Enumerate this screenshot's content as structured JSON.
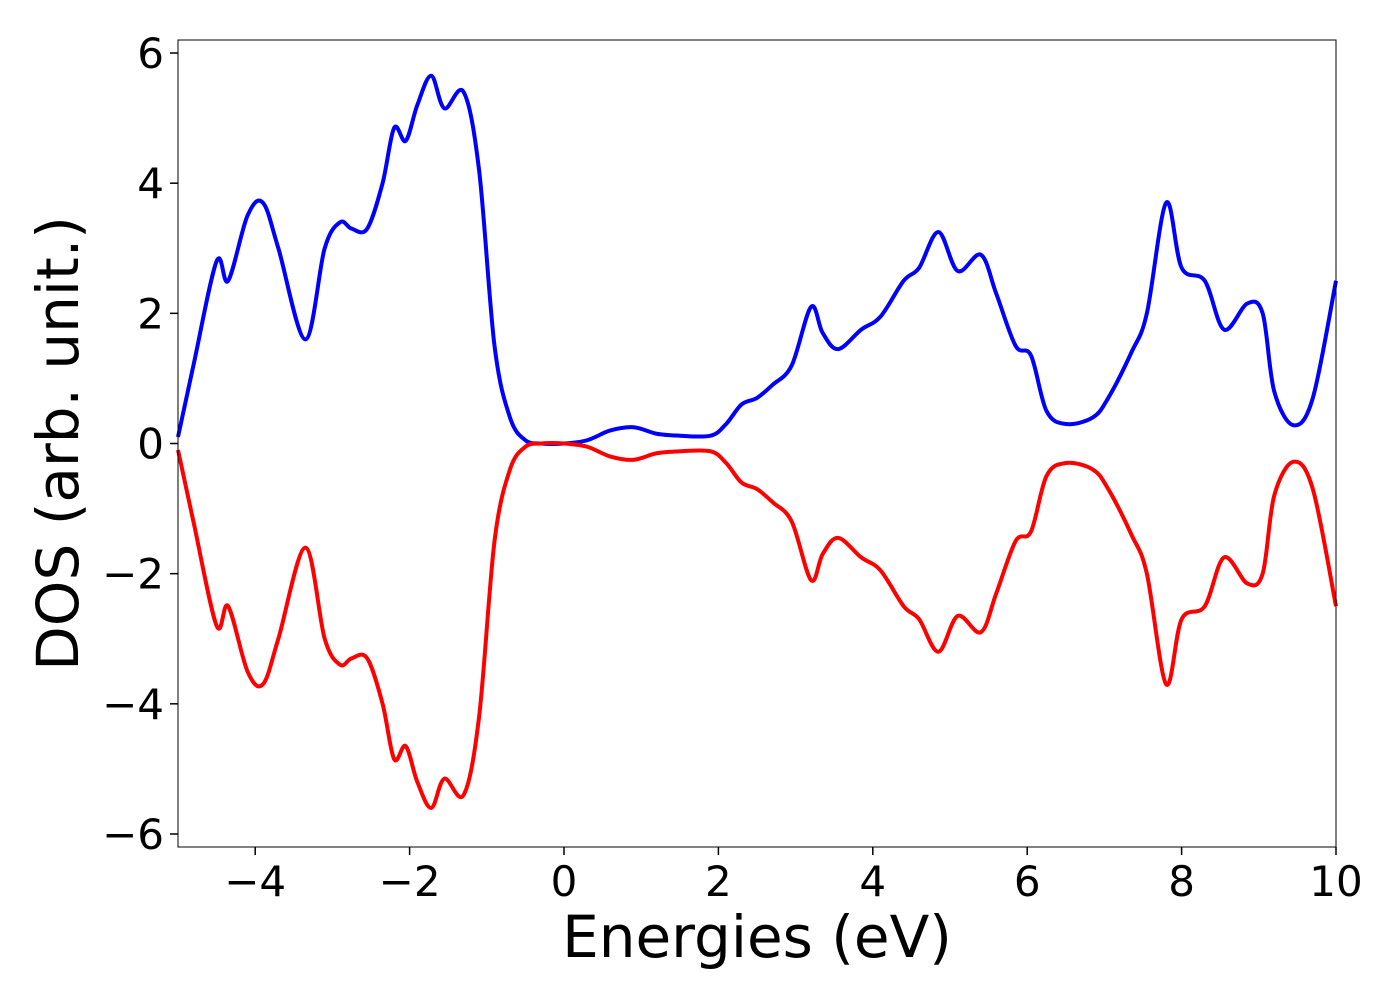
{
  "chart_data": {
    "type": "line",
    "xlabel": "Energies (eV)",
    "ylabel": "DOS (arb. unit.)",
    "xlim": [
      -5,
      10
    ],
    "ylim": [
      -6.2,
      6.2
    ],
    "xticks": [
      -4,
      -2,
      0,
      2,
      4,
      6,
      8,
      10
    ],
    "xtick_labels": [
      "−4",
      "−2",
      "0",
      "2",
      "4",
      "6",
      "8",
      "10"
    ],
    "yticks": [
      -6,
      -4,
      -2,
      0,
      2,
      4,
      6
    ],
    "ytick_labels": [
      "−6",
      "−4",
      "−2",
      "0",
      "2",
      "4",
      "6"
    ],
    "grid": false,
    "legend": "none",
    "x": [
      -5.0,
      -4.8,
      -4.5,
      -4.35,
      -4.1,
      -3.9,
      -3.7,
      -3.35,
      -3.1,
      -2.9,
      -2.75,
      -2.55,
      -2.35,
      -2.2,
      -2.05,
      -1.9,
      -1.72,
      -1.55,
      -1.3,
      -1.1,
      -0.9,
      -0.7,
      -0.5,
      -0.3,
      0.0,
      0.3,
      0.6,
      0.9,
      1.2,
      1.5,
      1.9,
      2.1,
      2.3,
      2.5,
      2.7,
      2.95,
      3.2,
      3.35,
      3.55,
      3.85,
      4.1,
      4.4,
      4.6,
      4.85,
      5.1,
      5.4,
      5.6,
      5.85,
      6.05,
      6.25,
      6.5,
      6.85,
      7.05,
      7.35,
      7.55,
      7.8,
      8.0,
      8.3,
      8.55,
      8.85,
      9.05,
      9.2,
      9.45,
      9.7,
      10.0
    ],
    "series": [
      {
        "color": "#0000ff",
        "values": [
          0.1,
          1.2,
          2.8,
          2.5,
          3.5,
          3.7,
          3.0,
          1.6,
          3.0,
          3.4,
          3.3,
          3.3,
          4.0,
          4.85,
          4.65,
          5.2,
          5.65,
          5.15,
          5.4,
          4.2,
          1.5,
          0.4,
          0.05,
          0.0,
          0.0,
          0.05,
          0.2,
          0.25,
          0.15,
          0.12,
          0.12,
          0.3,
          0.6,
          0.7,
          0.9,
          1.2,
          2.1,
          1.7,
          1.45,
          1.75,
          1.95,
          2.5,
          2.7,
          3.25,
          2.65,
          2.9,
          2.3,
          1.5,
          1.35,
          0.5,
          0.3,
          0.4,
          0.7,
          1.4,
          2.0,
          3.7,
          2.7,
          2.5,
          1.75,
          2.15,
          2.0,
          0.8,
          0.28,
          0.7,
          2.5
        ]
      },
      {
        "color": "#ff0000",
        "values": [
          -0.1,
          -1.2,
          -2.8,
          -2.5,
          -3.5,
          -3.7,
          -3.0,
          -1.6,
          -3.0,
          -3.4,
          -3.3,
          -3.3,
          -4.0,
          -4.85,
          -4.65,
          -5.2,
          -5.6,
          -5.15,
          -5.4,
          -4.2,
          -1.5,
          -0.4,
          -0.05,
          0.0,
          0.0,
          -0.05,
          -0.2,
          -0.25,
          -0.15,
          -0.12,
          -0.12,
          -0.3,
          -0.6,
          -0.7,
          -0.9,
          -1.2,
          -2.1,
          -1.7,
          -1.45,
          -1.75,
          -1.95,
          -2.5,
          -2.7,
          -3.2,
          -2.65,
          -2.9,
          -2.3,
          -1.5,
          -1.35,
          -0.5,
          -0.3,
          -0.4,
          -0.7,
          -1.4,
          -2.0,
          -3.7,
          -2.7,
          -2.5,
          -1.75,
          -2.15,
          -2.0,
          -0.8,
          -0.28,
          -0.7,
          -2.5
        ]
      }
    ]
  }
}
